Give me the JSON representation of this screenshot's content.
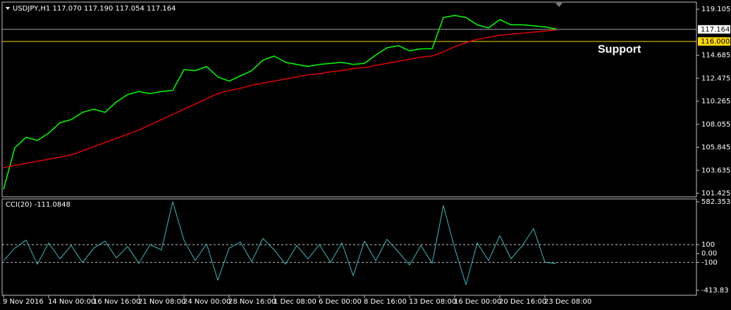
{
  "chart_data": {
    "type": "line",
    "title": "USDJPY,H1  117.070 117.190 117.054 117.164",
    "subtitle": "CCI(20) -111.0848",
    "annotations": [
      "Support"
    ],
    "categories": [
      "9 Nov 2016",
      null,
      null,
      null,
      "14 Nov 00:00",
      null,
      null,
      null,
      "16 Nov 16:00",
      null,
      null,
      null,
      "21 Nov 08:00",
      null,
      null,
      null,
      "24 Nov 00:00",
      null,
      null,
      null,
      "28 Nov 16:00",
      null,
      null,
      null,
      "1 Dec 08:00",
      null,
      null,
      null,
      "6 Dec 00:00",
      null,
      null,
      null,
      "8 Dec 16:00",
      null,
      null,
      null,
      "13 Dec 08:00",
      null,
      null,
      null,
      "16 Dec 00:00",
      null,
      null,
      null,
      "20 Dec 16:00",
      null,
      null,
      null,
      "23 Dec 08:00",
      null
    ],
    "series": [
      {
        "color": "#00ff00",
        "values": [
          101.8,
          105.8,
          106.8,
          106.5,
          107.2,
          108.2,
          108.5,
          109.2,
          109.5,
          109.2,
          110.2,
          110.9,
          111.2,
          111.0,
          111.2,
          111.3,
          113.3,
          113.2,
          113.6,
          112.6,
          112.2,
          112.7,
          113.2,
          114.2,
          114.6,
          114.0,
          113.8,
          113.6,
          113.8,
          113.9,
          114.0,
          113.8,
          113.9,
          114.7,
          115.4,
          115.6,
          115.1,
          115.3,
          115.3,
          118.3,
          118.5,
          118.3,
          117.6,
          117.3,
          118.1,
          117.6,
          117.6,
          117.5,
          117.4,
          117.2
        ]
      },
      {
        "color": "#e00000",
        "values": [
          103.9,
          104.1,
          104.3,
          104.5,
          104.7,
          104.9,
          105.1,
          105.5,
          105.9,
          106.3,
          106.7,
          107.1,
          107.5,
          108.0,
          108.5,
          109.0,
          109.5,
          110.0,
          110.5,
          111.0,
          111.3,
          111.5,
          111.8,
          112.0,
          112.2,
          112.4,
          112.6,
          112.8,
          112.9,
          113.1,
          113.2,
          113.4,
          113.5,
          113.7,
          113.9,
          114.1,
          114.3,
          114.5,
          114.6,
          115.0,
          115.5,
          115.9,
          116.2,
          116.4,
          116.6,
          116.7,
          116.8,
          116.9,
          117.0,
          117.1
        ]
      },
      {
        "color": "#3cb8b8",
        "axis": "y2",
        "values": [
          -80,
          60,
          150,
          -120,
          120,
          -60,
          90,
          -100,
          60,
          140,
          -50,
          80,
          -110,
          100,
          40,
          582,
          150,
          -80,
          110,
          -300,
          60,
          130,
          -90,
          170,
          40,
          -120,
          90,
          -60,
          100,
          -100,
          120,
          -250,
          140,
          -80,
          160,
          20,
          -130,
          90,
          -110,
          540,
          60,
          -350,
          120,
          -80,
          200,
          -60,
          90,
          280,
          -100,
          -111.0848
        ]
      }
    ],
    "ylim": [
      101.088,
      119.645
    ],
    "yticks": [
      119.105,
      114.685,
      112.475,
      110.265,
      108.055,
      105.845,
      103.635,
      101.425
    ],
    "y2lim": [
      -413.83,
      582.3532
    ],
    "y2ticks": [
      582.3532,
      100,
      {
        "value": 0,
        "label": "0.00"
      },
      -100,
      -413.83
    ],
    "levels": [
      100,
      -100
    ],
    "hlines": [
      {
        "value": 117.164,
        "color": "#a0a0b0"
      },
      {
        "value": 116,
        "label": "116.000",
        "color": "#ffd700"
      }
    ]
  }
}
